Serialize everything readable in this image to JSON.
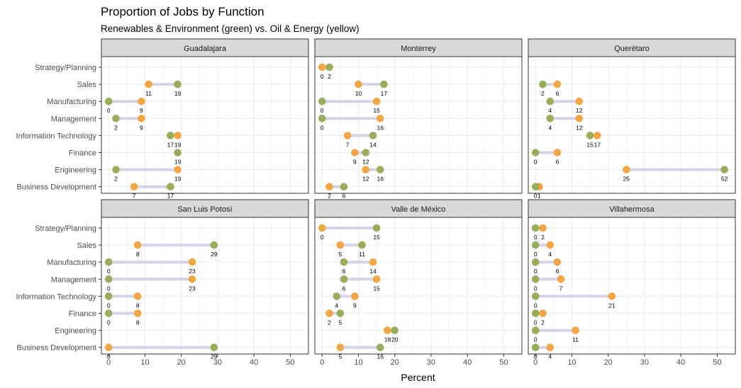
{
  "colors": {
    "renewables": "#98AE5C",
    "oil_energy": "#F0A748",
    "connector": "#D6D3E6",
    "strip_bg": "#D9D9D9",
    "grid": "#EBEBEB",
    "panel_border": "#333333"
  },
  "chart_data": {
    "type": "dumbbell",
    "title": "Proportion of Jobs by Function",
    "subtitle": "Renewables & Environment (green) vs. Oil & Energy (yellow)",
    "xlabel": "Percent",
    "ylabel": "",
    "xlim": [
      -2,
      55
    ],
    "xticks": [
      0,
      10,
      20,
      30,
      40,
      50
    ],
    "grid": true,
    "categories": [
      "Strategy/Planning",
      "Sales",
      "Manufacturing",
      "Management",
      "Information Technology",
      "Finance",
      "Engineering",
      "Business Development"
    ],
    "series_names": [
      "Renewables & Environment",
      "Oil & Energy"
    ],
    "panels": [
      {
        "name": "Guadalajara",
        "renewables": [
          null,
          19,
          0,
          2,
          17,
          19,
          2,
          17
        ],
        "oil_energy": [
          null,
          11,
          9,
          9,
          19,
          null,
          19,
          7
        ]
      },
      {
        "name": "Monterrey",
        "renewables": [
          2,
          17,
          0,
          0,
          14,
          12,
          16,
          6
        ],
        "oil_energy": [
          0,
          10,
          15,
          16,
          7,
          9,
          12,
          2
        ]
      },
      {
        "name": "Querétaro",
        "renewables": [
          null,
          2,
          4,
          4,
          15,
          0,
          52,
          0
        ],
        "oil_energy": [
          null,
          6,
          12,
          12,
          17,
          6,
          25,
          1
        ]
      },
      {
        "name": "San Luis Potosí",
        "renewables": [
          null,
          29,
          0,
          0,
          0,
          0,
          null,
          29
        ],
        "oil_energy": [
          null,
          8,
          23,
          23,
          8,
          8,
          null,
          0
        ]
      },
      {
        "name": "Valle de México",
        "renewables": [
          15,
          11,
          6,
          6,
          4,
          5,
          20,
          16
        ],
        "oil_energy": [
          0,
          5,
          14,
          15,
          9,
          2,
          18,
          5
        ]
      },
      {
        "name": "Villahermosa",
        "renewables": [
          0,
          0,
          0,
          0,
          0,
          0,
          0,
          0
        ],
        "oil_energy": [
          2,
          4,
          6,
          7,
          21,
          2,
          11,
          4
        ]
      }
    ]
  }
}
